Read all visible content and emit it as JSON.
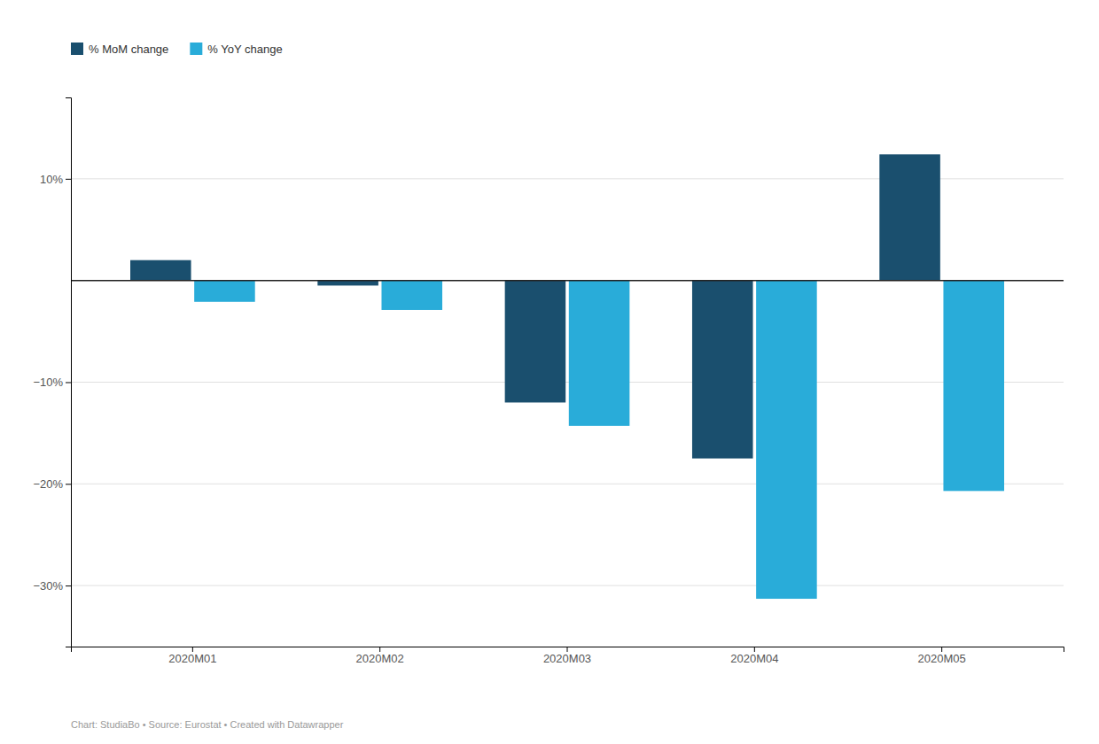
{
  "chart_data": {
    "type": "bar",
    "categories": [
      "2020M01",
      "2020M02",
      "2020M03",
      "2020M04",
      "2020M05"
    ],
    "series": [
      {
        "name": "% MoM change",
        "color": "#1a4f6e",
        "values": [
          2.0,
          -0.5,
          -12.0,
          -17.5,
          12.4
        ]
      },
      {
        "name": "% YoY change",
        "color": "#29acd9",
        "values": [
          -2.1,
          -2.9,
          -14.3,
          -31.3,
          -20.7
        ]
      }
    ],
    "ylim": [
      -36,
      18
    ],
    "yticks": [
      {
        "value": 10,
        "label": "10%"
      },
      {
        "value": -10,
        "label": "−10%"
      },
      {
        "value": -20,
        "label": "−20%"
      },
      {
        "value": -30,
        "label": "−30%"
      }
    ],
    "grid": true,
    "legend": "upper left",
    "annotations": [
      "Chart: StudiaBo • Source: Eurostat • Created with Datawrapper"
    ]
  }
}
